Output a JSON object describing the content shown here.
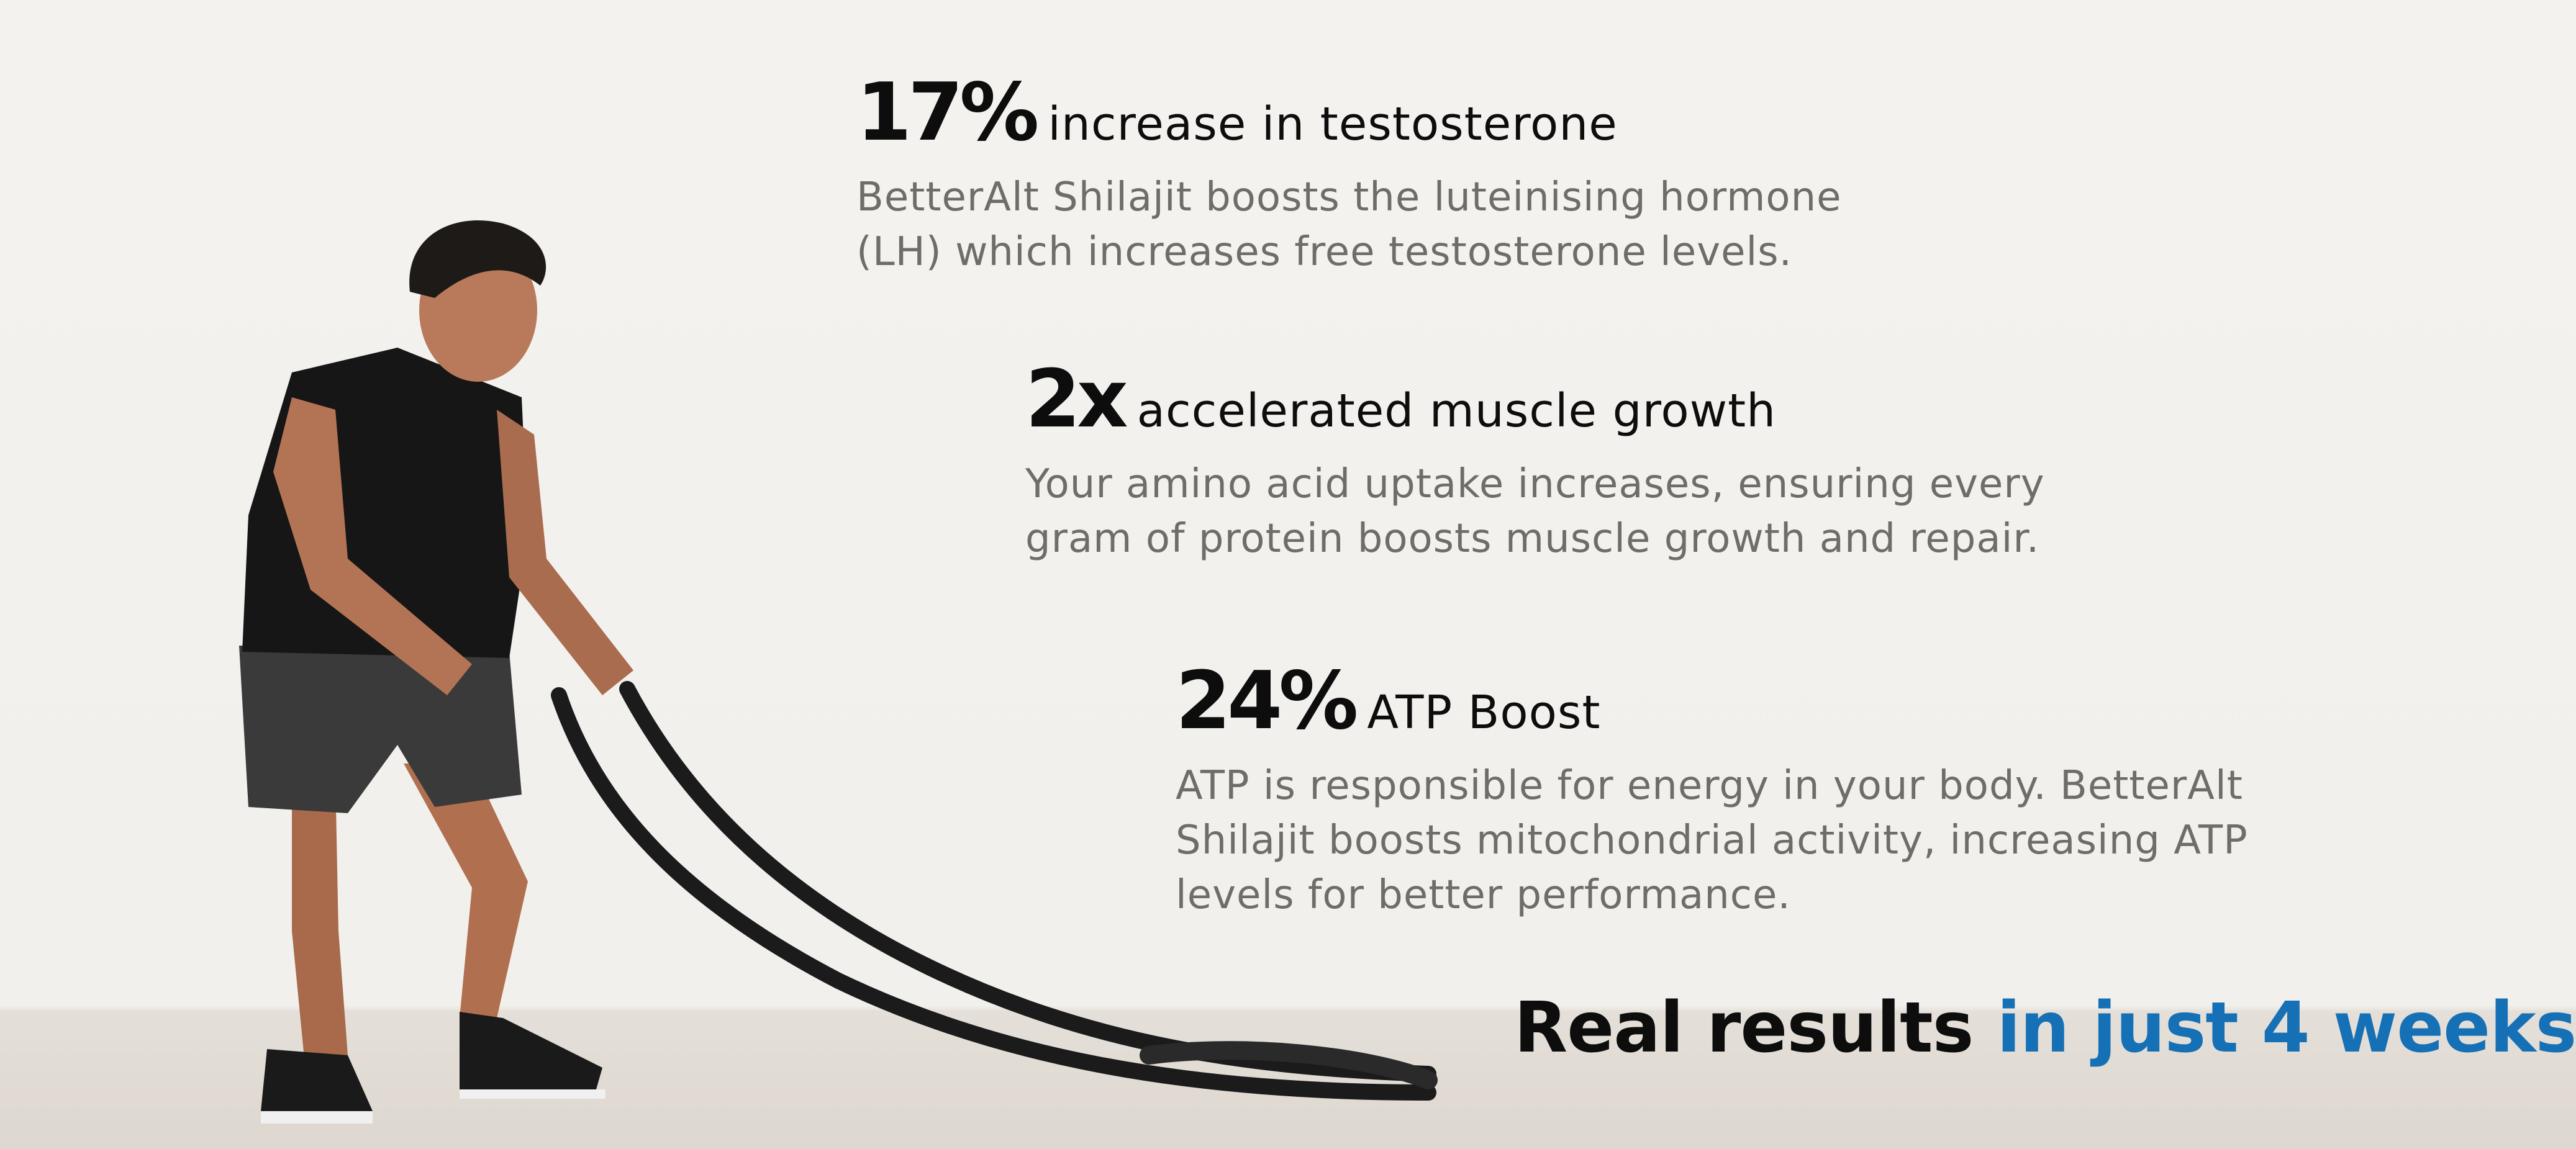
{
  "stats": [
    {
      "value": "17%",
      "label": "increase in testosterone",
      "lines": [
        "BetterAlt Shilajit boosts the luteinising hormone",
        "(LH) which increases free testosterone levels."
      ]
    },
    {
      "value": "2x",
      "label": "accelerated muscle growth",
      "lines": [
        "Your amino acid uptake increases, ensuring every",
        "gram of protein boosts muscle growth and repair."
      ]
    },
    {
      "value": "24%",
      "label": "ATP Boost",
      "lines": [
        "ATP is responsible for energy in your body. BetterAlt",
        "Shilajit boosts mitochondrial activity, increasing ATP",
        "levels for better performance."
      ]
    }
  ],
  "tagline": {
    "dark": "Real results",
    "accent": "in just 4 weeks"
  },
  "colors": {
    "accent": "#1670b6",
    "heading": "#0d0d0d",
    "body": "#6f6c69",
    "wall": "#f3f1ee",
    "floor": "#ddd7cf"
  }
}
